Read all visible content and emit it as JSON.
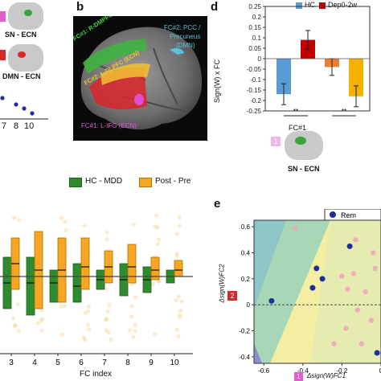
{
  "panel_a": {
    "labels": [
      "SN - ECN",
      "DMN - ECN"
    ],
    "tick_labels": [
      "7",
      "8",
      "10"
    ],
    "colors": {
      "badge1": "#e05fc9",
      "badge2": "#d62828"
    }
  },
  "panel_b": {
    "letter": "b",
    "fc1_sn": "FC#1: R-DMPFC/SMA (SN)",
    "fc2_dlpfc": "FC#2: L-DLPFC (ECN)",
    "fc2_pcc_line1": "FC#2: PCC /",
    "fc2_pcc_line2": "Precuneus",
    "fc2_pcc_line3": "(DMN)",
    "fc1_ifg": "FC#1: L-IFG (ECN)"
  },
  "panel_d": {
    "letter": "d",
    "legend": [
      "HC",
      "Dep0-2w"
    ],
    "ylabel": "Sign(W) x FC",
    "fc_label": "FC#1",
    "badge": "1",
    "network_label": "SN - ECN",
    "sig": [
      "**",
      "**"
    ]
  },
  "panel_c": {
    "legend": [
      "HC - MDD",
      "Post - Pre"
    ],
    "xlabel": "FC index"
  },
  "panel_e": {
    "letter": "e",
    "legend_label": "Rem",
    "ylabel": "Δsign(W)FC2",
    "xlabel": "Δsign(W)FC1",
    "badge_y": "2",
    "badge_x": "1"
  },
  "chart_data": [
    {
      "type": "bar",
      "panel": "d",
      "categories": [
        "HC",
        "Dep0-2w",
        "",
        ""
      ],
      "series": [
        {
          "values": [
            -0.17,
            0.09,
            -0.04,
            -0.18
          ]
        }
      ],
      "errors": [
        0.05,
        0.045,
        0.04,
        0.05
      ],
      "colors": [
        "#5a9bd5",
        "#c00000",
        "#ed7d31",
        "#f5b000"
      ],
      "ylim": [
        -0.25,
        0.25
      ],
      "yticks": [
        "0.25",
        "0.2",
        "0.15",
        "0.1",
        "0.05",
        "0",
        "-0.05",
        "-0.1",
        "-0.15",
        "-0.2",
        "-0.25"
      ]
    },
    {
      "type": "box",
      "panel": "c",
      "categories": [
        "3",
        "4",
        "5",
        "6",
        "7",
        "8",
        "9",
        "10"
      ],
      "series": [
        {
          "name": "HC - MDD",
          "color": "#2e8b2e",
          "boxes": [
            [
              -0.5,
              0.3,
              -0.1
            ],
            [
              -0.6,
              0.3,
              -0.1
            ],
            [
              -0.4,
              0.1,
              -0.1
            ],
            [
              -0.4,
              0.2,
              -0.15
            ],
            [
              -0.2,
              0.1,
              -0.05
            ],
            [
              -0.3,
              0.2,
              -0.05
            ],
            [
              -0.25,
              0.15,
              -0.05
            ],
            [
              -0.1,
              0.1,
              0.0
            ]
          ]
        },
        {
          "name": "Post - Pre",
          "color": "#f5a623",
          "boxes": [
            [
              -0.2,
              0.6,
              0.2
            ],
            [
              -0.5,
              0.7,
              0.1
            ],
            [
              -0.4,
              0.6,
              0.1
            ],
            [
              -0.2,
              0.6,
              0.15
            ],
            [
              -0.1,
              0.4,
              0.15
            ],
            [
              -0.1,
              0.5,
              0.15
            ],
            [
              -0.05,
              0.3,
              0.1
            ],
            [
              0.0,
              0.25,
              0.1
            ]
          ]
        }
      ],
      "hline": 0.0
    },
    {
      "type": "scatter",
      "panel": "e",
      "xlim": [
        -0.65,
        0.0
      ],
      "ylim": [
        -0.45,
        0.65
      ],
      "xticks": [
        "-0.6",
        "-0.4",
        "-0.2",
        "0"
      ],
      "yticks": [
        "0.6",
        "0.4",
        "0.2",
        "0",
        "-0.2",
        "-0.4"
      ],
      "series": [
        {
          "name": "Rem",
          "color": "#1c2e9c",
          "points": [
            [
              -0.56,
              0.03
            ],
            [
              -0.33,
              0.28
            ],
            [
              -0.3,
              0.2
            ],
            [
              -0.35,
              0.13
            ],
            [
              -0.16,
              0.45
            ],
            [
              -0.02,
              -0.37
            ]
          ]
        },
        {
          "color": "#f2a2c0",
          "points": [
            [
              -0.44,
              0.59
            ],
            [
              -0.2,
              0.22
            ],
            [
              -0.14,
              0.24
            ],
            [
              -0.04,
              0.4
            ],
            [
              -0.03,
              0.28
            ],
            [
              -0.08,
              0.1
            ],
            [
              -0.12,
              -0.04
            ],
            [
              -0.18,
              -0.18
            ],
            [
              -0.1,
              -0.3
            ],
            [
              -0.24,
              -0.3
            ],
            [
              -0.13,
              0.5
            ],
            [
              -0.05,
              -0.12
            ],
            [
              -0.17,
              0.12
            ]
          ]
        }
      ]
    }
  ]
}
